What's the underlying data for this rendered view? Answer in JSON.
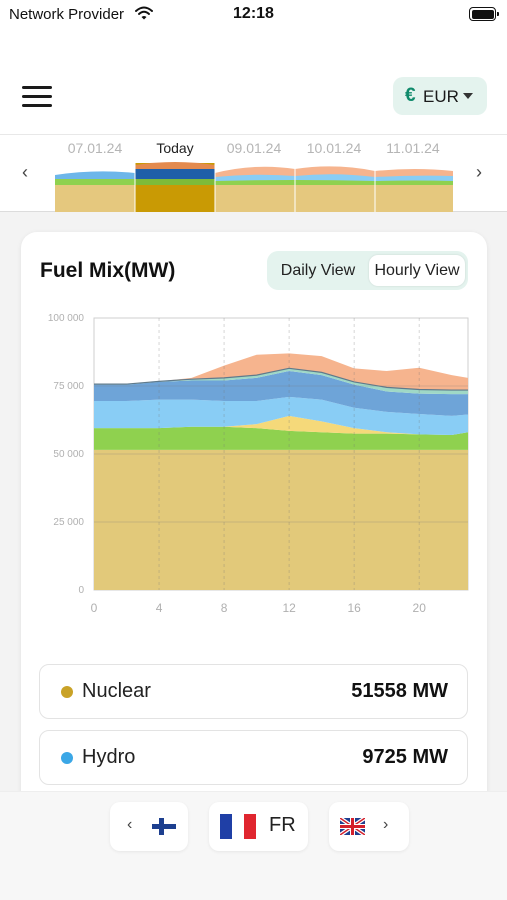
{
  "status": {
    "carrier": "Network Provider",
    "time": "12:18"
  },
  "header": {
    "currency_symbol": "€",
    "currency": "EUR"
  },
  "timeline": {
    "dates": [
      "07.01.24",
      "Today",
      "09.01.24",
      "10.01.24",
      "11.01.24"
    ],
    "selected": "Today",
    "prev_arrow": "‹",
    "next_arrow": "›"
  },
  "card": {
    "title": "Fuel Mix(MW)",
    "toggle": {
      "daily": "Daily View",
      "hourly": "Hourly View",
      "selected": "Hourly View"
    }
  },
  "chart_data": {
    "type": "area",
    "stacked": true,
    "x": [
      0,
      2,
      4,
      6,
      8,
      10,
      12,
      14,
      16,
      18,
      20,
      22,
      23
    ],
    "xticks": [
      0,
      4,
      8,
      12,
      16,
      20
    ],
    "xtick_labels": [
      "0",
      "4",
      "8",
      "12",
      "16",
      "20"
    ],
    "yticks": [
      0,
      25000,
      50000,
      75000,
      100000
    ],
    "ytick_labels": [
      "0",
      "25 000",
      "50 000",
      "75 000",
      "100 000"
    ],
    "ylim": [
      0,
      100000
    ],
    "xlim": [
      0,
      23
    ],
    "grid": true,
    "series": [
      {
        "color": "#e2c97a",
        "values": [
          51500,
          51500,
          51500,
          51500,
          51500,
          51500,
          51500,
          51500,
          51500,
          51500,
          51500,
          51500,
          51500
        ]
      },
      {
        "color": "#8fd14f",
        "values": [
          8000,
          8000,
          8000,
          8500,
          8500,
          8000,
          7000,
          6500,
          6000,
          6000,
          5700,
          5500,
          6500
        ]
      },
      {
        "color": "#f5d97a",
        "values": [
          0,
          0,
          0,
          0,
          0,
          1500,
          5500,
          4000,
          2000,
          500,
          0,
          0,
          0
        ]
      },
      {
        "color": "#89cdf5",
        "values": [
          10000,
          10000,
          10500,
          10000,
          9500,
          8500,
          7000,
          8000,
          7500,
          7500,
          7500,
          7000,
          6500
        ]
      },
      {
        "color": "#6ea4d8",
        "values": [
          6000,
          6000,
          6500,
          7000,
          7500,
          8500,
          9500,
          9000,
          8500,
          7500,
          7500,
          8000,
          7500
        ]
      },
      {
        "color": "#9fd8c6",
        "values": [
          200,
          200,
          200,
          500,
          1000,
          1000,
          1000,
          1000,
          1000,
          1500,
          1500,
          1500,
          1500
        ]
      },
      {
        "color": "#f6b48e",
        "values": [
          0,
          0,
          0,
          500,
          4500,
          7500,
          5500,
          6000,
          5000,
          6000,
          8000,
          5500,
          4500
        ]
      }
    ]
  },
  "fuels": [
    {
      "name": "Nuclear",
      "value": "51558 MW",
      "color": "#c9a227"
    },
    {
      "name": "Hydro",
      "value": "9725 MW",
      "color": "#3ba7e6"
    }
  ],
  "bottom": {
    "country": "FR",
    "prev_arrow": "‹",
    "next_arrow": "›"
  }
}
